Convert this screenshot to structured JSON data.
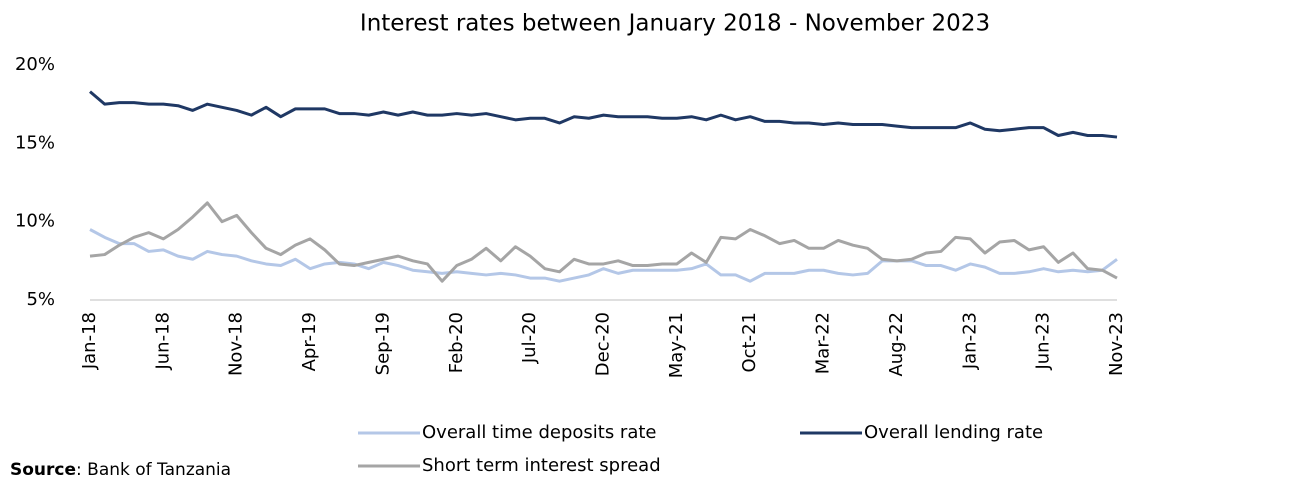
{
  "chart_data": {
    "type": "line",
    "title": "Interest rates between January 2018 - November 2023",
    "categories": [
      "Jan-18",
      null,
      null,
      null,
      null,
      "Jun-18",
      null,
      null,
      null,
      null,
      "Nov-18",
      null,
      null,
      null,
      null,
      "Apr-19",
      null,
      null,
      null,
      null,
      "Sep-19",
      null,
      null,
      null,
      null,
      "Feb-20",
      null,
      null,
      null,
      null,
      "Jul-20",
      null,
      null,
      null,
      null,
      "Dec-20",
      null,
      null,
      null,
      null,
      "May-21",
      null,
      null,
      null,
      null,
      "Oct-21",
      null,
      null,
      null,
      null,
      "Mar-22",
      null,
      null,
      null,
      null,
      "Aug-22",
      null,
      null,
      null,
      null,
      "Jan-23",
      null,
      null,
      null,
      null,
      "Jun-23",
      null,
      null,
      null,
      null,
      "Nov-23"
    ],
    "series": [
      {
        "name": "Overall time deposits rate",
        "color": "#b4c7e7",
        "values": [
          9.5,
          9.0,
          8.6,
          8.6,
          8.1,
          8.2,
          7.8,
          7.6,
          8.1,
          7.9,
          7.8,
          7.5,
          7.3,
          7.2,
          7.6,
          7.0,
          7.3,
          7.4,
          7.3,
          7.0,
          7.4,
          7.2,
          6.9,
          6.8,
          6.7,
          6.8,
          6.7,
          6.6,
          6.7,
          6.6,
          6.4,
          6.4,
          6.2,
          6.4,
          6.6,
          7.0,
          6.7,
          6.9,
          6.9,
          6.9,
          6.9,
          7.0,
          7.3,
          6.6,
          6.6,
          6.2,
          6.7,
          6.7,
          6.7,
          6.9,
          6.9,
          6.7,
          6.6,
          6.7,
          7.5,
          7.5,
          7.5,
          7.2,
          7.2,
          6.9,
          7.3,
          7.1,
          6.7,
          6.7,
          6.8,
          7.0,
          6.8,
          6.9,
          6.8,
          6.9,
          7.6
        ]
      },
      {
        "name": "Overall lending rate",
        "color": "#1f3864",
        "values": [
          18.3,
          17.5,
          17.6,
          17.6,
          17.5,
          17.5,
          17.4,
          17.1,
          17.5,
          17.3,
          17.1,
          16.8,
          17.3,
          16.7,
          17.2,
          17.2,
          17.2,
          16.9,
          16.9,
          16.8,
          17.0,
          16.8,
          17.0,
          16.8,
          16.8,
          16.9,
          16.8,
          16.9,
          16.7,
          16.5,
          16.6,
          16.6,
          16.3,
          16.7,
          16.6,
          16.8,
          16.7,
          16.7,
          16.7,
          16.6,
          16.6,
          16.7,
          16.5,
          16.8,
          16.5,
          16.7,
          16.4,
          16.4,
          16.3,
          16.3,
          16.2,
          16.3,
          16.2,
          16.2,
          16.2,
          16.1,
          16.0,
          16.0,
          16.0,
          16.0,
          16.3,
          15.9,
          15.8,
          15.9,
          16.0,
          16.0,
          15.5,
          15.7,
          15.5,
          15.5,
          15.4
        ]
      },
      {
        "name": "Short term interest spread",
        "color": "#a5a5a5",
        "values": [
          7.8,
          7.9,
          8.5,
          9.0,
          9.3,
          8.9,
          9.5,
          10.3,
          11.2,
          10.0,
          10.4,
          9.3,
          8.3,
          7.9,
          8.5,
          8.9,
          8.2,
          7.3,
          7.2,
          7.4,
          7.6,
          7.8,
          7.5,
          7.3,
          6.2,
          7.2,
          7.6,
          8.3,
          7.5,
          8.4,
          7.8,
          7.0,
          6.8,
          7.6,
          7.3,
          7.3,
          7.5,
          7.2,
          7.2,
          7.3,
          7.3,
          8.0,
          7.4,
          9.0,
          8.9,
          9.5,
          9.1,
          8.6,
          8.8,
          8.3,
          8.3,
          8.8,
          8.5,
          8.3,
          7.6,
          7.5,
          7.6,
          8.0,
          8.1,
          9.0,
          8.9,
          8.0,
          8.7,
          8.8,
          8.2,
          8.4,
          7.4,
          8.0,
          7.0,
          6.9,
          6.4
        ]
      }
    ],
    "ylim": [
      5,
      20
    ],
    "yticks": [
      {
        "value": 5,
        "label": "5%"
      },
      {
        "value": 10,
        "label": "10%"
      },
      {
        "value": 15,
        "label": "15%"
      },
      {
        "value": 20,
        "label": "20%"
      }
    ],
    "grid": false,
    "source_label": "Source",
    "source_text": ": Bank of Tanzania"
  }
}
